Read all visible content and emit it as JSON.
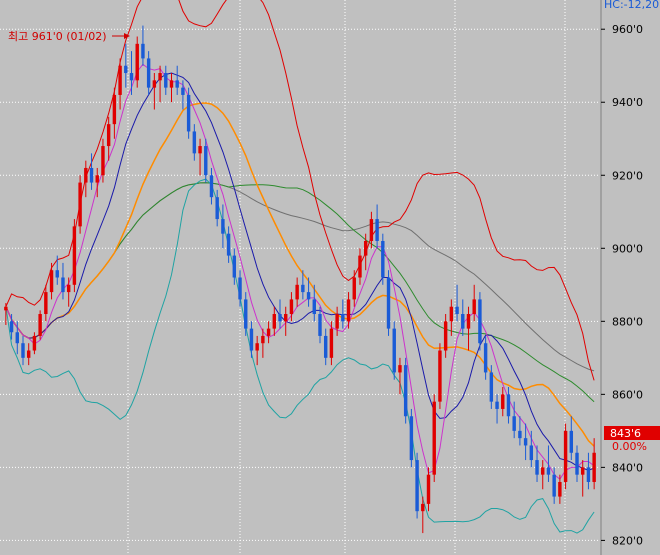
{
  "header": {
    "text": "HC:-12,20"
  },
  "annotation": {
    "text": "최고 961'0 (01/02)"
  },
  "price_badge": {
    "value": "843'6",
    "change": "0.00%"
  },
  "colors": {
    "background": "#c0c0c0",
    "up": "#e00000",
    "down": "#1a5bd6",
    "bollinger_upper": "#e00000",
    "bollinger_lower": "#1fa3a3",
    "ma_fast": "#cc33cc",
    "ma_mid": "#1a1aaa",
    "ma_orange": "#ff8c00",
    "ma_long": "#2e8b2e",
    "ma_longest": "#707070",
    "badge": "#e00000",
    "axis_text_change": "#e00000"
  },
  "chart_data": {
    "type": "candlestick",
    "ylim": [
      816,
      968
    ],
    "y_ticks": [
      "960'0",
      "940'0",
      "920'0",
      "900'0",
      "880'0",
      "860'0",
      "840'0",
      "820'0"
    ],
    "y_tick_values": [
      960,
      940,
      920,
      900,
      880,
      860,
      840,
      820
    ],
    "grid": true,
    "candles": [
      [
        883,
        885,
        879,
        884
      ],
      [
        880,
        882,
        875,
        877
      ],
      [
        877,
        880,
        871,
        874
      ],
      [
        874,
        876,
        868,
        870
      ],
      [
        870,
        874,
        868,
        872
      ],
      [
        872,
        877,
        871,
        876
      ],
      [
        876,
        883,
        875,
        882
      ],
      [
        882,
        890,
        880,
        888
      ],
      [
        888,
        896,
        886,
        894
      ],
      [
        894,
        898,
        890,
        892
      ],
      [
        892,
        896,
        886,
        888
      ],
      [
        888,
        892,
        884,
        890
      ],
      [
        890,
        908,
        888,
        906
      ],
      [
        906,
        920,
        904,
        918
      ],
      [
        918,
        924,
        914,
        922
      ],
      [
        922,
        926,
        916,
        918
      ],
      [
        918,
        922,
        914,
        920
      ],
      [
        920,
        930,
        918,
        928
      ],
      [
        928,
        936,
        924,
        934
      ],
      [
        934,
        944,
        930,
        942
      ],
      [
        942,
        952,
        938,
        950
      ],
      [
        950,
        956,
        944,
        948
      ],
      [
        948,
        954,
        942,
        946
      ],
      [
        946,
        958,
        944,
        956
      ],
      [
        956,
        961,
        950,
        952
      ],
      [
        952,
        954,
        942,
        944
      ],
      [
        944,
        948,
        938,
        946
      ],
      [
        946,
        950,
        940,
        948
      ],
      [
        948,
        950,
        942,
        944
      ],
      [
        944,
        948,
        940,
        946
      ],
      [
        946,
        950,
        942,
        944
      ],
      [
        944,
        946,
        938,
        942
      ],
      [
        942,
        944,
        930,
        932
      ],
      [
        932,
        934,
        924,
        926
      ],
      [
        926,
        930,
        920,
        928
      ],
      [
        928,
        930,
        918,
        920
      ],
      [
        920,
        922,
        912,
        914
      ],
      [
        914,
        916,
        906,
        908
      ],
      [
        908,
        912,
        900,
        904
      ],
      [
        904,
        906,
        896,
        898
      ],
      [
        898,
        900,
        890,
        892
      ],
      [
        892,
        894,
        884,
        886
      ],
      [
        886,
        888,
        876,
        878
      ],
      [
        878,
        880,
        870,
        872
      ],
      [
        872,
        876,
        868,
        874
      ],
      [
        874,
        878,
        870,
        876
      ],
      [
        876,
        880,
        874,
        878
      ],
      [
        878,
        884,
        876,
        882
      ],
      [
        882,
        886,
        878,
        880
      ],
      [
        880,
        884,
        876,
        882
      ],
      [
        882,
        888,
        880,
        886
      ],
      [
        886,
        892,
        884,
        890
      ],
      [
        890,
        894,
        886,
        888
      ],
      [
        888,
        892,
        884,
        886
      ],
      [
        886,
        890,
        880,
        882
      ],
      [
        882,
        884,
        874,
        876
      ],
      [
        876,
        878,
        868,
        870
      ],
      [
        870,
        880,
        868,
        878
      ],
      [
        878,
        884,
        876,
        882
      ],
      [
        882,
        886,
        878,
        880
      ],
      [
        880,
        888,
        878,
        886
      ],
      [
        886,
        894,
        884,
        892
      ],
      [
        892,
        900,
        890,
        898
      ],
      [
        898,
        904,
        894,
        902
      ],
      [
        902,
        910,
        900,
        908
      ],
      [
        908,
        912,
        900,
        902
      ],
      [
        902,
        904,
        890,
        892
      ],
      [
        892,
        894,
        876,
        878
      ],
      [
        878,
        880,
        864,
        866
      ],
      [
        866,
        870,
        860,
        868
      ],
      [
        868,
        870,
        852,
        854
      ],
      [
        854,
        856,
        840,
        842
      ],
      [
        842,
        844,
        826,
        828
      ],
      [
        828,
        832,
        822,
        830
      ],
      [
        830,
        840,
        828,
        838
      ],
      [
        838,
        860,
        836,
        858
      ],
      [
        858,
        874,
        856,
        872
      ],
      [
        872,
        882,
        870,
        880
      ],
      [
        880,
        886,
        876,
        884
      ],
      [
        884,
        890,
        880,
        882
      ],
      [
        882,
        886,
        876,
        878
      ],
      [
        878,
        884,
        872,
        882
      ],
      [
        882,
        890,
        880,
        886
      ],
      [
        886,
        888,
        872,
        874
      ],
      [
        874,
        876,
        864,
        866
      ],
      [
        866,
        868,
        856,
        858
      ],
      [
        858,
        860,
        852,
        856
      ],
      [
        856,
        862,
        854,
        860
      ],
      [
        860,
        862,
        852,
        854
      ],
      [
        854,
        858,
        848,
        850
      ],
      [
        850,
        854,
        846,
        848
      ],
      [
        848,
        852,
        842,
        846
      ],
      [
        846,
        850,
        840,
        842
      ],
      [
        842,
        846,
        836,
        838
      ],
      [
        838,
        842,
        834,
        840
      ],
      [
        840,
        846,
        836,
        838
      ],
      [
        838,
        840,
        830,
        832
      ],
      [
        832,
        838,
        830,
        836
      ],
      [
        836,
        852,
        834,
        850
      ],
      [
        850,
        854,
        842,
        844
      ],
      [
        844,
        846,
        836,
        838
      ],
      [
        838,
        842,
        832,
        840
      ],
      [
        840,
        844,
        834,
        836
      ],
      [
        836,
        848,
        834,
        844
      ]
    ]
  }
}
